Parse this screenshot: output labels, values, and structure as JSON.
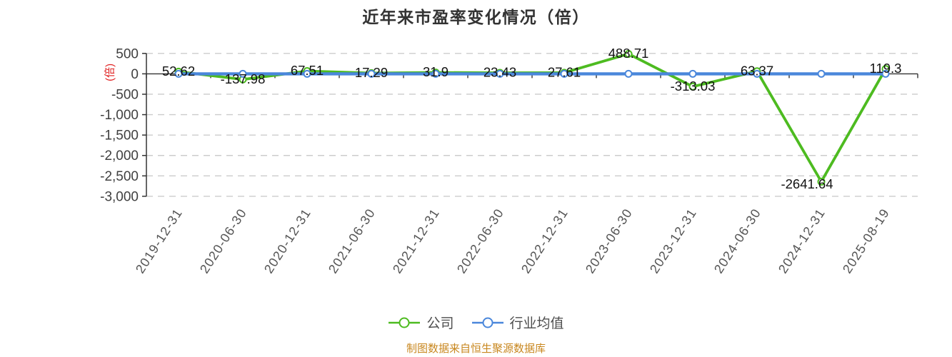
{
  "chart_data": {
    "type": "line",
    "title": "近年来市盈率变化情况（倍）",
    "ylabel": "(倍)",
    "categories": [
      "2019-12-31",
      "2020-06-30",
      "2020-12-31",
      "2021-06-30",
      "2021-12-31",
      "2022-06-30",
      "2022-12-31",
      "2023-06-30",
      "2023-12-31",
      "2024-06-30",
      "2024-12-31",
      "2025-08-19"
    ],
    "series": [
      {
        "name": "公司",
        "color": "#4dbb20",
        "values": [
          52.62,
          -137.98,
          67.51,
          17.29,
          31.9,
          23.43,
          27.61,
          488.71,
          -313.03,
          63.37,
          -2641.64,
          119.3
        ],
        "labels": [
          "52.62",
          "-137.98",
          "67.51",
          "17.29",
          "31.9",
          "23.43",
          "27.61",
          "488.71",
          "-313.03",
          "63.37",
          "-2641.64",
          "119.3"
        ]
      },
      {
        "name": "行业均值",
        "color": "#4a87db",
        "values": [
          0,
          0,
          0,
          0,
          0,
          0,
          0,
          0,
          0,
          0,
          0,
          0
        ],
        "labels": []
      }
    ],
    "ylim": [
      -3000,
      500
    ],
    "y_ticks": [
      500,
      0,
      -500,
      -1000,
      -1500,
      -2000,
      -2500,
      -3000
    ],
    "y_tick_labels": [
      "500",
      "0",
      "-500",
      "-1,000",
      "-1,500",
      "-2,000",
      "-2,500",
      "-3,000"
    ],
    "grid": "dashed",
    "legend_position": "bottom"
  },
  "footer": {
    "source_note": "制图数据来自恒生聚源数据库"
  },
  "colors": {
    "title": "#333333",
    "axis": "#333333",
    "grid": "#cccccc",
    "y_tick_label": "#404040",
    "x_tick_label": "#555555",
    "data_label": "#111111",
    "ylabel": "#e02020",
    "footer": "#c8871f",
    "legend_text": "#4d4d4d"
  }
}
